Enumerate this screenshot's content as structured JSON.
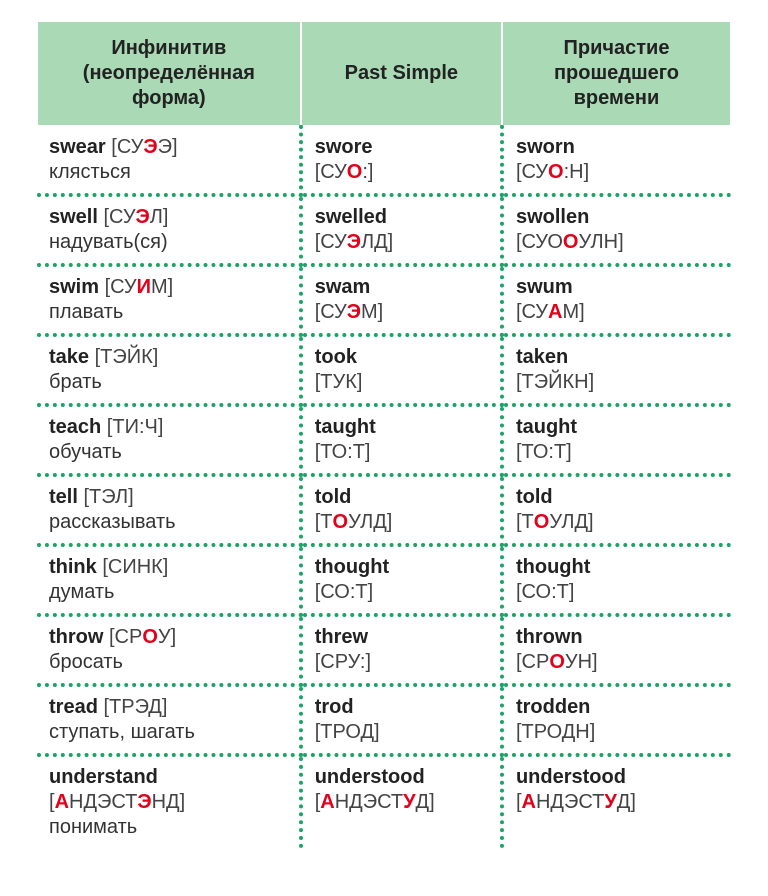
{
  "table": {
    "columns": [
      {
        "label": "Инфинитив (неопределённая форма)"
      },
      {
        "label": "Past Simple"
      },
      {
        "label": "Причастие прошедшего времени"
      }
    ],
    "colors": {
      "header_bg": "#a9d9b5",
      "border_dot": "#1aa567",
      "stress": "#e3001a",
      "text": "#333333"
    },
    "font_sizes": {
      "header": 20,
      "body": 20
    },
    "rows": [
      {
        "c0": {
          "word": "swear",
          "trans": [
            {
              "t": " [СУ"
            },
            {
              "s": "Э"
            },
            {
              "t": "Э]"
            }
          ],
          "ru": "клясться"
        },
        "c1": {
          "word": "swore",
          "trans": [
            {
              "t": "[СУ"
            },
            {
              "s": "О"
            },
            {
              "t": ":]"
            }
          ]
        },
        "c2": {
          "word": "sworn",
          "trans": [
            {
              "t": "[СУ"
            },
            {
              "s": "О"
            },
            {
              "t": ":Н]"
            }
          ]
        }
      },
      {
        "c0": {
          "word": "swell",
          "trans": [
            {
              "t": " [СУ"
            },
            {
              "s": "Э"
            },
            {
              "t": "Л]"
            }
          ],
          "ru": "надувать(ся)"
        },
        "c1": {
          "word": "swelled",
          "trans": [
            {
              "t": "[СУ"
            },
            {
              "s": "Э"
            },
            {
              "t": "ЛД]"
            }
          ]
        },
        "c2": {
          "word": "swollen",
          "trans": [
            {
              "t": "[СУО"
            },
            {
              "s": "О"
            },
            {
              "t": "УЛН]"
            }
          ]
        }
      },
      {
        "c0": {
          "word": "swim",
          "trans": [
            {
              "t": " [СУ"
            },
            {
              "s": "И"
            },
            {
              "t": "М]"
            }
          ],
          "ru": "плавать"
        },
        "c1": {
          "word": "swam",
          "trans": [
            {
              "t": "[СУ"
            },
            {
              "s": "Э"
            },
            {
              "t": "М]"
            }
          ]
        },
        "c2": {
          "word": "swum",
          "trans": [
            {
              "t": "[СУ"
            },
            {
              "s": "А"
            },
            {
              "t": "М]"
            }
          ]
        }
      },
      {
        "c0": {
          "word": "take",
          "trans": [
            {
              "t": " [ТЭЙК]"
            }
          ],
          "ru": "брать"
        },
        "c1": {
          "word": "took",
          "trans": [
            {
              "t": "[ТУК]"
            }
          ]
        },
        "c2": {
          "word": "taken",
          "trans": [
            {
              "t": "[ТЭЙКН]"
            }
          ]
        }
      },
      {
        "c0": {
          "word": "teach",
          "trans": [
            {
              "t": " [ТИ:Ч]"
            }
          ],
          "ru": "обучать"
        },
        "c1": {
          "word": "taught",
          "trans": [
            {
              "t": "[ТО:Т]"
            }
          ]
        },
        "c2": {
          "word": "taught",
          "trans": [
            {
              "t": "[ТО:Т]"
            }
          ]
        }
      },
      {
        "c0": {
          "word": "tell",
          "trans": [
            {
              "t": " [ТЭЛ]"
            }
          ],
          "ru": "рассказывать"
        },
        "c1": {
          "word": "told",
          "trans": [
            {
              "t": "[Т"
            },
            {
              "s": "О"
            },
            {
              "t": "УЛД]"
            }
          ]
        },
        "c2": {
          "word": "told",
          "trans": [
            {
              "t": "[Т"
            },
            {
              "s": "О"
            },
            {
              "t": "УЛД]"
            }
          ]
        }
      },
      {
        "c0": {
          "word": "think",
          "trans": [
            {
              "t": " [СИНК]"
            }
          ],
          "ru": "думать"
        },
        "c1": {
          "word": "thought",
          "trans": [
            {
              "t": "[СО:Т]"
            }
          ]
        },
        "c2": {
          "word": "thought",
          "trans": [
            {
              "t": "[СО:Т]"
            }
          ]
        }
      },
      {
        "c0": {
          "word": "throw",
          "trans": [
            {
              "t": " [СР"
            },
            {
              "s": "О"
            },
            {
              "t": "У]"
            }
          ],
          "ru": "бросать"
        },
        "c1": {
          "word": "threw",
          "trans": [
            {
              "t": "[СРУ:]"
            }
          ]
        },
        "c2": {
          "word": "thrown",
          "trans": [
            {
              "t": "[СР"
            },
            {
              "s": "О"
            },
            {
              "t": "УН]"
            }
          ]
        }
      },
      {
        "c0": {
          "word": "tread",
          "trans": [
            {
              "t": " [ТРЭД]"
            }
          ],
          "ru": "ступать, шагать"
        },
        "c1": {
          "word": "trod",
          "trans": [
            {
              "t": "[ТРОД]"
            }
          ]
        },
        "c2": {
          "word": "trodden",
          "trans": [
            {
              "t": "[ТРОДН]"
            }
          ]
        }
      },
      {
        "c0": {
          "word": "understand",
          "trans": [
            {
              "t": " ["
            },
            {
              "s": "А"
            },
            {
              "t": "НДЭСТ"
            },
            {
              "s": "Э"
            },
            {
              "t": "НД]"
            }
          ],
          "ru": "понимать"
        },
        "c1": {
          "word": "understood",
          "trans": [
            {
              "t": "["
            },
            {
              "s": "А"
            },
            {
              "t": "НДЭСТ"
            },
            {
              "s": "У"
            },
            {
              "t": "Д]"
            }
          ]
        },
        "c2": {
          "word": "understood",
          "trans": [
            {
              "t": "["
            },
            {
              "s": "А"
            },
            {
              "t": "НДЭСТ"
            },
            {
              "s": "У"
            },
            {
              "t": "Д]"
            }
          ]
        }
      }
    ]
  }
}
